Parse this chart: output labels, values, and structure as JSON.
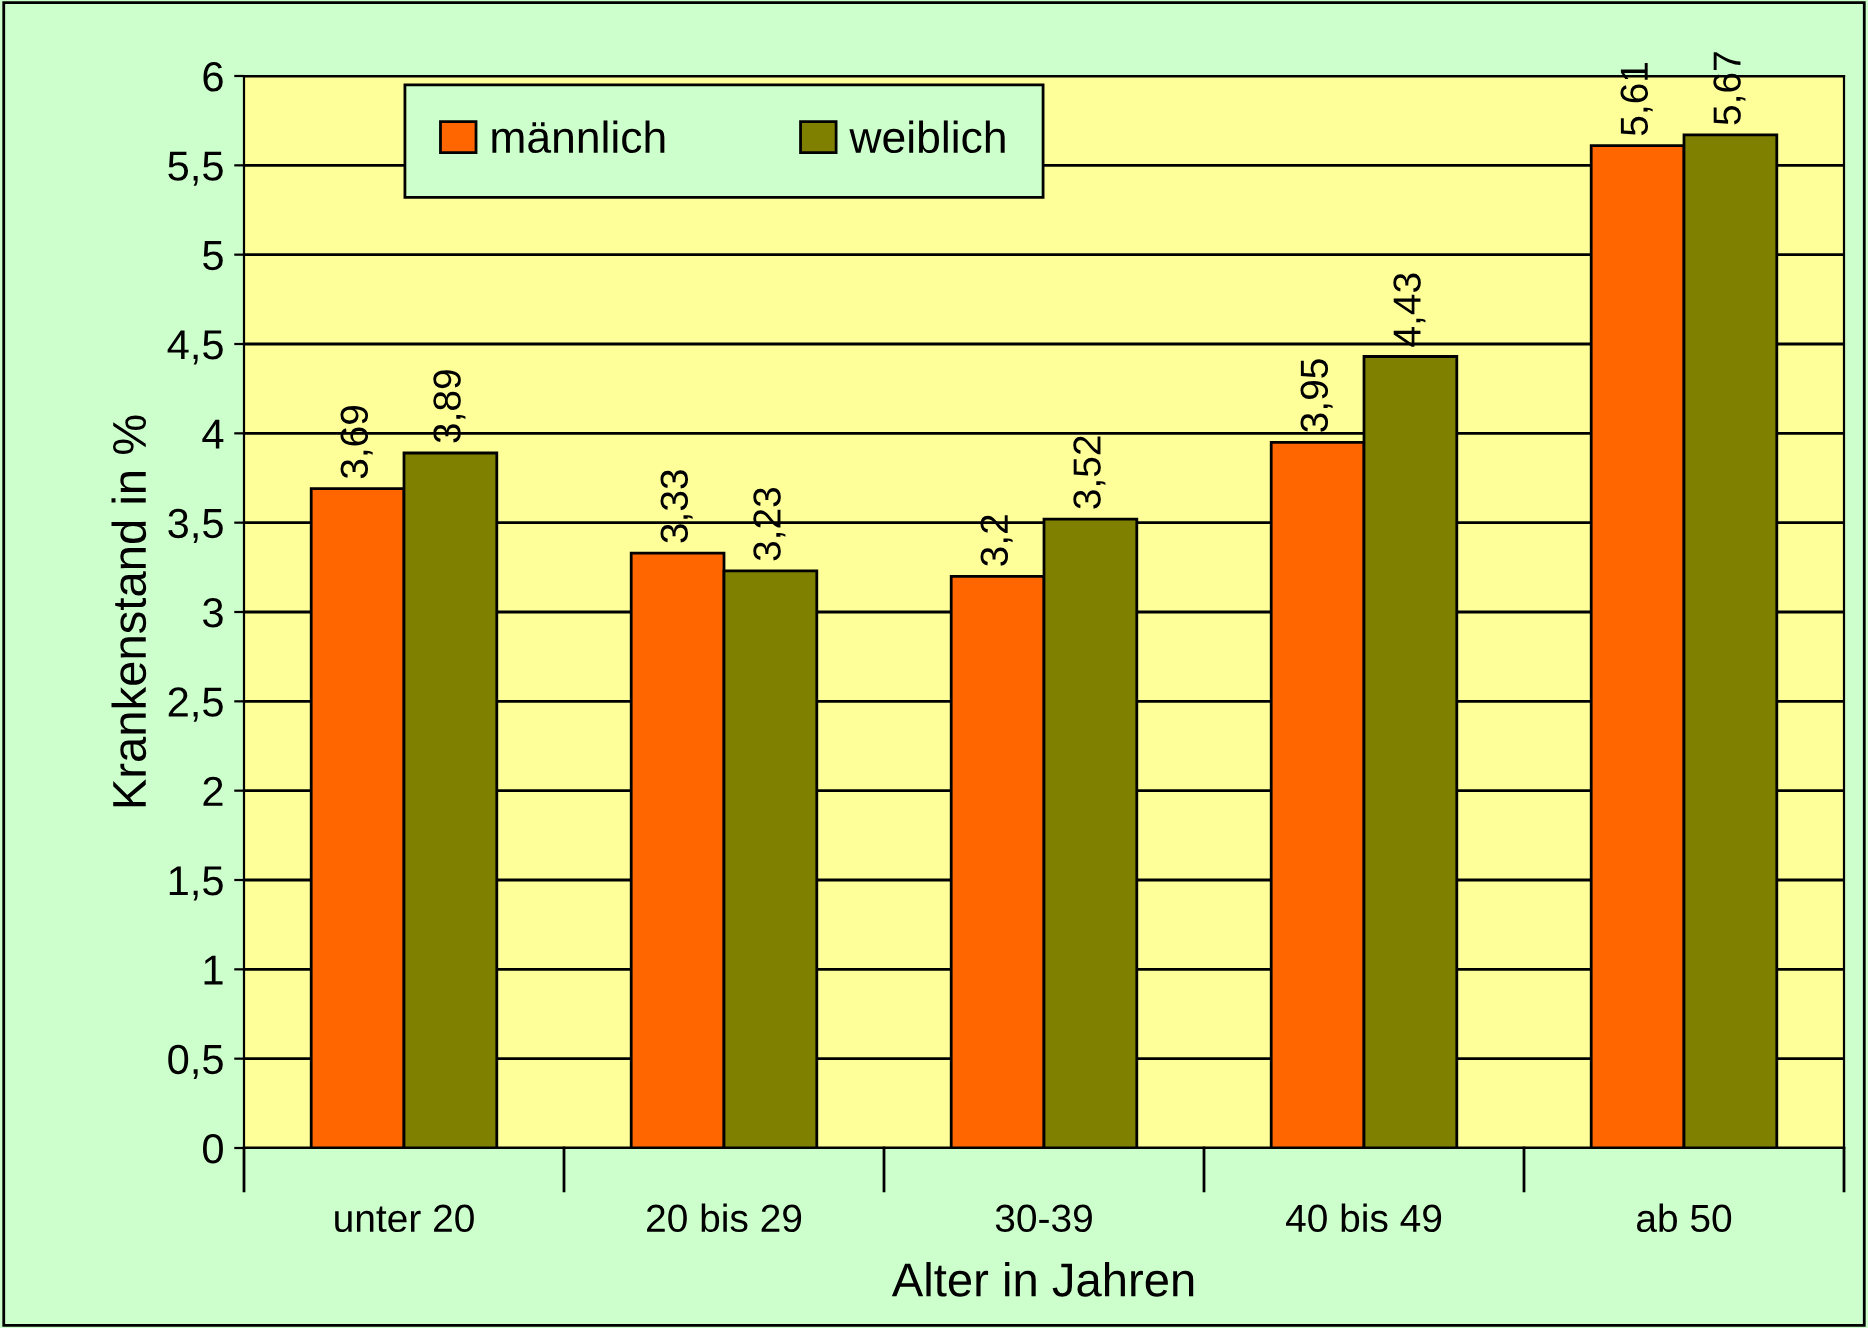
{
  "chart_data": {
    "type": "bar",
    "xlabel": "Alter in Jahren",
    "ylabel": "Krankenstand in %",
    "categories": [
      "unter 20",
      "20 bis 29",
      "30-39",
      "40 bis 49",
      "ab 50"
    ],
    "series": [
      {
        "name": "männlich",
        "color": "#ff6600",
        "values": [
          3.69,
          3.33,
          3.2,
          3.95,
          5.61
        ],
        "value_labels": [
          "3,69",
          "3,33",
          "3,2",
          "3,95",
          "5,61"
        ]
      },
      {
        "name": "weiblich",
        "color": "#808000",
        "values": [
          3.89,
          3.23,
          3.52,
          4.43,
          5.67
        ],
        "value_labels": [
          "3,89",
          "3,23",
          "3,52",
          "4,43",
          "5,67"
        ]
      }
    ],
    "ylim": [
      0,
      6
    ],
    "yticks": [
      0,
      {
        "value": 0.5,
        "label": "0,5"
      },
      1,
      {
        "value": 1.5,
        "label": "1,5"
      },
      2,
      {
        "value": 2.5,
        "label": "2,5"
      },
      3,
      {
        "value": 3.5,
        "label": "3,5"
      },
      4,
      {
        "value": 4.5,
        "label": "4,5"
      },
      5,
      {
        "value": 5.5,
        "label": "5,5"
      },
      6
    ],
    "grid": "y",
    "legend": "top"
  }
}
